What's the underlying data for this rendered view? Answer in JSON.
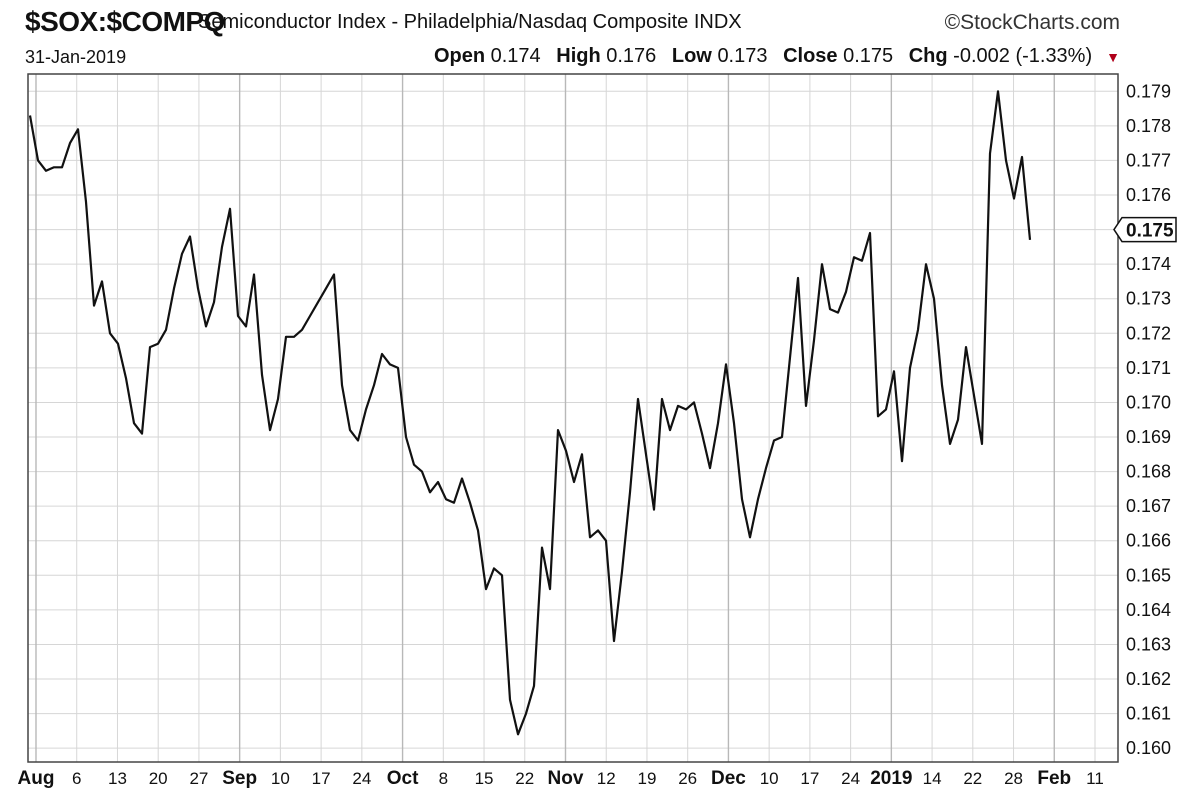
{
  "header": {
    "symbol": "$SOX:$COMPQ",
    "description": "Semiconductor Index - Philadelphia/Nasdaq Composite",
    "exchange": "INDX",
    "brand": "©StockCharts.com",
    "date": "31-Jan-2019",
    "open_label": "Open",
    "open_value": "0.174",
    "high_label": "High",
    "high_value": "0.176",
    "low_label": "Low",
    "low_value": "0.173",
    "close_label": "Close",
    "close_value": "0.175",
    "chg_label": "Chg",
    "chg_value": "-0.002 (-1.33%)"
  },
  "chart_data": {
    "type": "line",
    "ylim": [
      0.1596,
      0.1795
    ],
    "y_ticks": [
      "0.160",
      "0.161",
      "0.162",
      "0.163",
      "0.164",
      "0.165",
      "0.166",
      "0.167",
      "0.168",
      "0.169",
      "0.170",
      "0.171",
      "0.172",
      "0.173",
      "0.174",
      "0.175",
      "0.176",
      "0.177",
      "0.178",
      "0.179"
    ],
    "x_ticks": [
      {
        "label": "Aug",
        "bold": true
      },
      {
        "label": "6"
      },
      {
        "label": "13"
      },
      {
        "label": "20"
      },
      {
        "label": "27"
      },
      {
        "label": "Sep",
        "bold": true
      },
      {
        "label": "10"
      },
      {
        "label": "17"
      },
      {
        "label": "24"
      },
      {
        "label": "Oct",
        "bold": true
      },
      {
        "label": "8"
      },
      {
        "label": "15"
      },
      {
        "label": "22"
      },
      {
        "label": "Nov",
        "bold": true
      },
      {
        "label": "12"
      },
      {
        "label": "19"
      },
      {
        "label": "26"
      },
      {
        "label": "Dec",
        "bold": true
      },
      {
        "label": "10"
      },
      {
        "label": "17"
      },
      {
        "label": "24"
      },
      {
        "label": "2019",
        "bold": true
      },
      {
        "label": "14"
      },
      {
        "label": "22"
      },
      {
        "label": "28"
      },
      {
        "label": "Feb",
        "bold": true
      },
      {
        "label": "11"
      }
    ],
    "last_value_label": "0.175",
    "grid": true,
    "series": [
      {
        "values": [
          0.1783,
          0.177,
          0.1767,
          0.1768,
          0.1768,
          0.1775,
          0.1779,
          0.1758,
          0.1728,
          0.1735,
          0.172,
          0.1717,
          0.1707,
          0.1694,
          0.1691,
          0.1716,
          0.1717,
          0.1721,
          0.1733,
          0.1743,
          0.1748,
          0.1733,
          0.1722,
          0.1729,
          0.1745,
          0.1756,
          0.1725,
          0.1722,
          0.1737,
          0.1708,
          0.1692,
          0.1701,
          0.1719,
          0.1719,
          0.1721,
          0.1725,
          0.1729,
          0.1733,
          0.1737,
          0.1705,
          0.1692,
          0.1689,
          0.1698,
          0.1705,
          0.1714,
          0.1711,
          0.171,
          0.169,
          0.1682,
          0.168,
          0.1674,
          0.1677,
          0.1672,
          0.1671,
          0.1678,
          0.1671,
          0.1663,
          0.1646,
          0.1652,
          0.165,
          0.1614,
          0.1604,
          0.161,
          0.1618,
          0.1658,
          0.1646,
          0.1692,
          0.1686,
          0.1677,
          0.1685,
          0.1661,
          0.1663,
          0.166,
          0.1631,
          0.1651,
          0.1674,
          0.1701,
          0.1685,
          0.1669,
          0.1701,
          0.1692,
          0.1699,
          0.1698,
          0.17,
          0.1691,
          0.1681,
          0.1694,
          0.1711,
          0.1694,
          0.1672,
          0.1661,
          0.1672,
          0.1681,
          0.1689,
          0.169,
          0.1713,
          0.1736,
          0.1699,
          0.1718,
          0.174,
          0.1727,
          0.1726,
          0.1732,
          0.1742,
          0.1741,
          0.1749,
          0.1696,
          0.1698,
          0.1709,
          0.1683,
          0.171,
          0.1721,
          0.174,
          0.173,
          0.1705,
          0.1688,
          0.1695,
          0.1716,
          0.1702,
          0.1688,
          0.1772,
          0.179,
          0.177,
          0.1759,
          0.1771,
          0.1747
        ]
      }
    ]
  }
}
